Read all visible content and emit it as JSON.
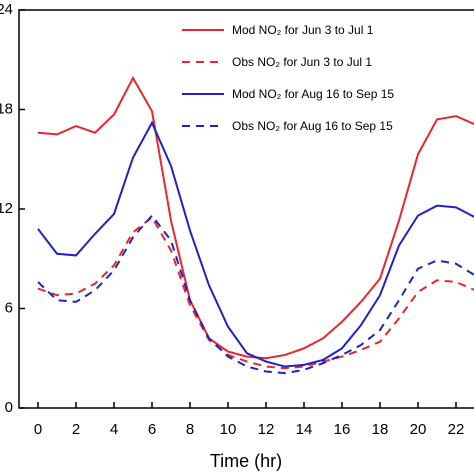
{
  "chart_data": {
    "type": "line",
    "x_label": "Time (hr)",
    "x": [
      0,
      1,
      2,
      3,
      4,
      5,
      6,
      7,
      8,
      9,
      10,
      11,
      12,
      13,
      14,
      15,
      16,
      17,
      18,
      19,
      20,
      21,
      22,
      23
    ],
    "xlim": [
      -1,
      23.5
    ],
    "xticks": [
      0,
      2,
      4,
      6,
      8,
      10,
      12,
      14,
      16,
      18,
      20,
      22
    ],
    "ylim": [
      0,
      24
    ],
    "yticks": [
      0,
      6,
      12,
      18,
      24
    ],
    "legend": "upper right",
    "series": [
      {
        "name": "Mod NO₂ for Jun 3 to Jul 1",
        "color": "#e8262b",
        "dash": false,
        "values": [
          16.6,
          16.5,
          17.0,
          16.6,
          17.7,
          19.9,
          17.9,
          11.3,
          6.5,
          4.2,
          3.4,
          3.1,
          3.0,
          3.2,
          3.6,
          4.2,
          5.2,
          6.4,
          7.8,
          11.3,
          15.3,
          17.4,
          17.6,
          17.1
        ]
      },
      {
        "name": "Obs NO₂ for Jun 3 to Jul 1",
        "color": "#e8262b",
        "dash": true,
        "values": [
          7.2,
          6.8,
          6.9,
          7.5,
          8.6,
          10.6,
          11.5,
          9.5,
          6.2,
          4.1,
          3.2,
          2.8,
          2.5,
          2.4,
          2.5,
          2.8,
          3.1,
          3.5,
          4.0,
          5.4,
          7.0,
          7.7,
          7.6,
          7.1
        ]
      },
      {
        "name": "Mod NO₂ for Aug 16 to Sep 15",
        "color": "#1f22c8",
        "dash": false,
        "values": [
          10.8,
          9.3,
          9.2,
          10.5,
          11.7,
          15.1,
          17.2,
          14.6,
          10.7,
          7.4,
          4.9,
          3.3,
          2.8,
          2.5,
          2.6,
          2.9,
          3.6,
          5.0,
          6.8,
          9.8,
          11.6,
          12.2,
          12.1,
          11.5
        ]
      },
      {
        "name": "Obs NO₂ for Aug 16 to Sep 15",
        "color": "#1f22c8",
        "dash": true,
        "values": [
          7.6,
          6.5,
          6.4,
          7.1,
          8.3,
          10.3,
          11.6,
          10.1,
          6.5,
          4.2,
          3.1,
          2.5,
          2.2,
          2.1,
          2.3,
          2.7,
          3.2,
          3.8,
          4.7,
          6.5,
          8.4,
          8.9,
          8.7,
          8.0
        ]
      }
    ]
  }
}
